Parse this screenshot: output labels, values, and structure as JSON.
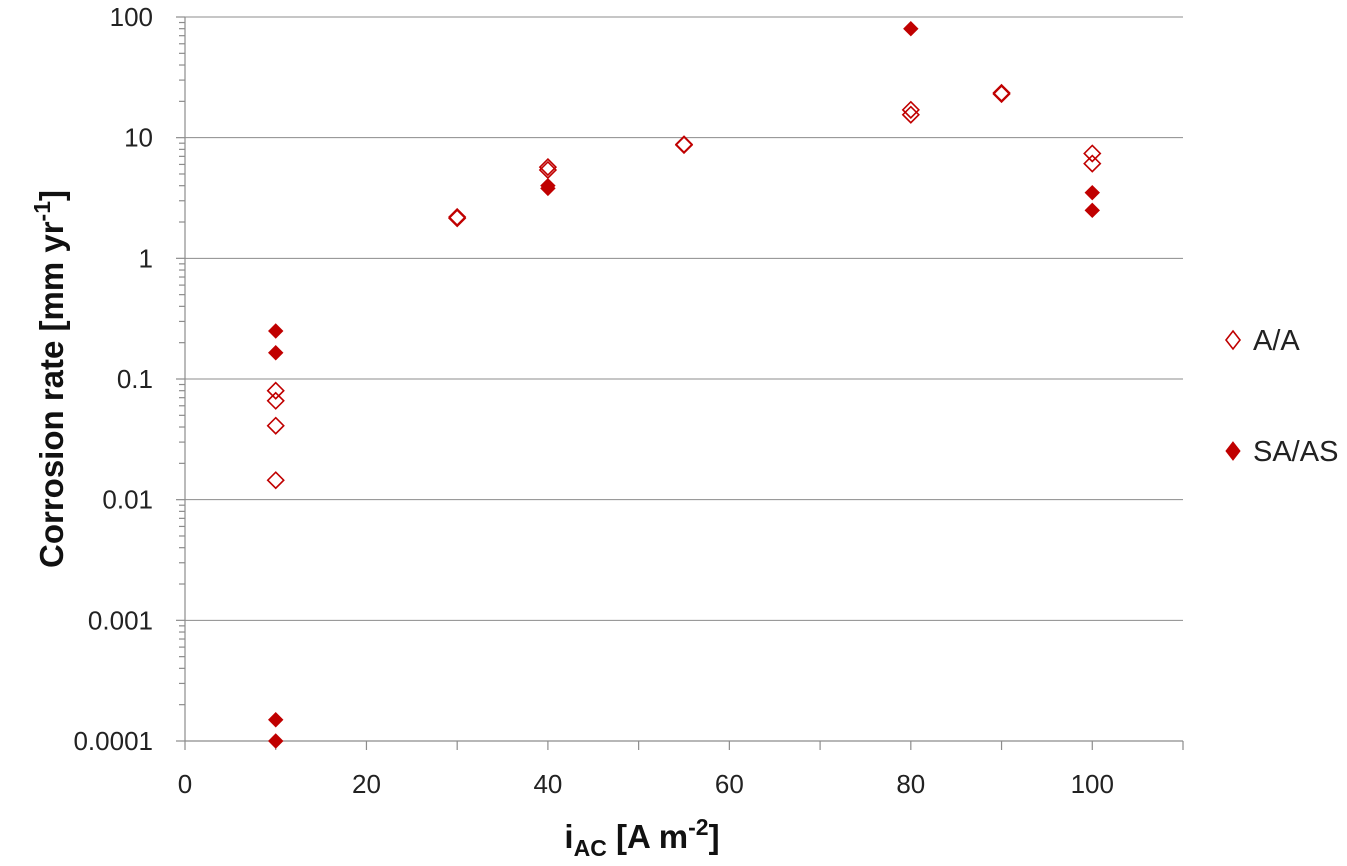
{
  "chart_data": {
    "type": "scatter",
    "title": "",
    "xlabel": {
      "main": "i",
      "sub": "AC",
      "rest": " [A m",
      "sup": "-2",
      "end": "]"
    },
    "ylabel": {
      "main": "Corrosion rate [mm yr",
      "sup": "-1",
      "end": "]"
    },
    "x_ticks": [
      "0",
      "20",
      "40",
      "60",
      "80",
      "100"
    ],
    "y_ticks": [
      "0.0001",
      "0.001",
      "0.01",
      "0.1",
      "1",
      "10",
      "100"
    ],
    "xlim": [
      0,
      110
    ],
    "ylim": [
      0.0001,
      100
    ],
    "y_scale": "log",
    "grid": "horizontal",
    "legend_position": "right",
    "series": [
      {
        "name": "A/A",
        "marker": "diamond-open",
        "color": "#c00000",
        "points": [
          [
            10,
            0.08
          ],
          [
            10,
            0.066
          ],
          [
            10,
            0.041
          ],
          [
            10,
            0.0145
          ],
          [
            30,
            2.2
          ],
          [
            30,
            2.15
          ],
          [
            40,
            5.7
          ],
          [
            40,
            5.4
          ],
          [
            55,
            8.8
          ],
          [
            55,
            8.7
          ],
          [
            80,
            17.0
          ],
          [
            80,
            15.5
          ],
          [
            90,
            23.5
          ],
          [
            90,
            23.0
          ],
          [
            100,
            7.4
          ],
          [
            100,
            6.1
          ]
        ]
      },
      {
        "name": "SA/AS",
        "marker": "diamond-filled",
        "color": "#c00000",
        "points": [
          [
            10,
            0.25
          ],
          [
            10,
            0.165
          ],
          [
            10,
            0.00015
          ],
          [
            10,
            0.0001
          ],
          [
            40,
            4.0
          ],
          [
            40,
            3.8
          ],
          [
            80,
            80.0
          ],
          [
            100,
            3.5
          ],
          [
            100,
            2.5
          ]
        ]
      }
    ]
  }
}
